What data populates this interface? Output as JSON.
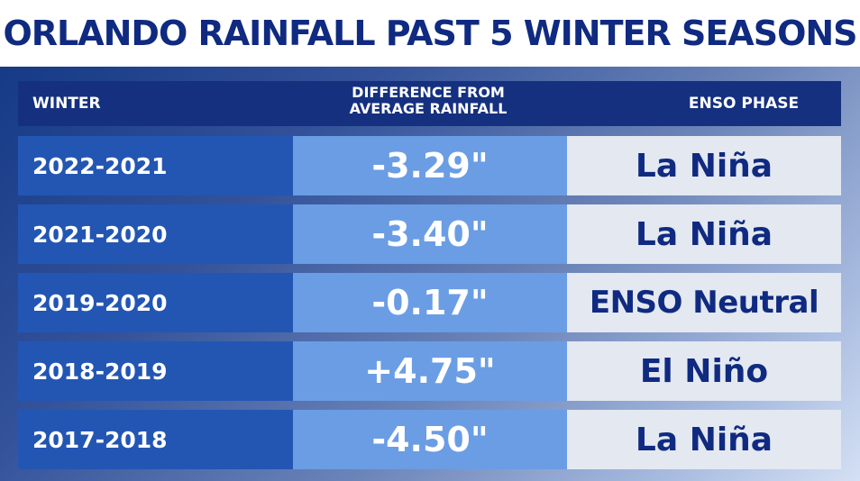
{
  "title": "ORLANDO RAINFALL PAST 5 WINTER SEASONS",
  "table": {
    "headers": {
      "winter": "WINTER",
      "difference_line1": "DIFFERENCE FROM",
      "difference_line2": "AVERAGE RAINFALL",
      "enso": "ENSO PHASE"
    },
    "rows": [
      {
        "winter": "2022-2021",
        "difference": "-3.29\"",
        "enso": "La Niña"
      },
      {
        "winter": "2021-2020",
        "difference": "-3.40\"",
        "enso": "La Niña"
      },
      {
        "winter": "2019-2020",
        "difference": "-0.17\"",
        "enso": "ENSO Neutral"
      },
      {
        "winter": "2018-2019",
        "difference": "+4.75\"",
        "enso": "El Niño"
      },
      {
        "winter": "2017-2018",
        "difference": "-4.50\"",
        "enso": "La Niña"
      }
    ]
  },
  "colors": {
    "title_text": "#0f2a80",
    "header_bg": "#15307f",
    "winter_cell_bg": "#2356b3",
    "difference_cell_bg": "#6a9de4",
    "enso_cell_bg": "#e3e8f1"
  }
}
